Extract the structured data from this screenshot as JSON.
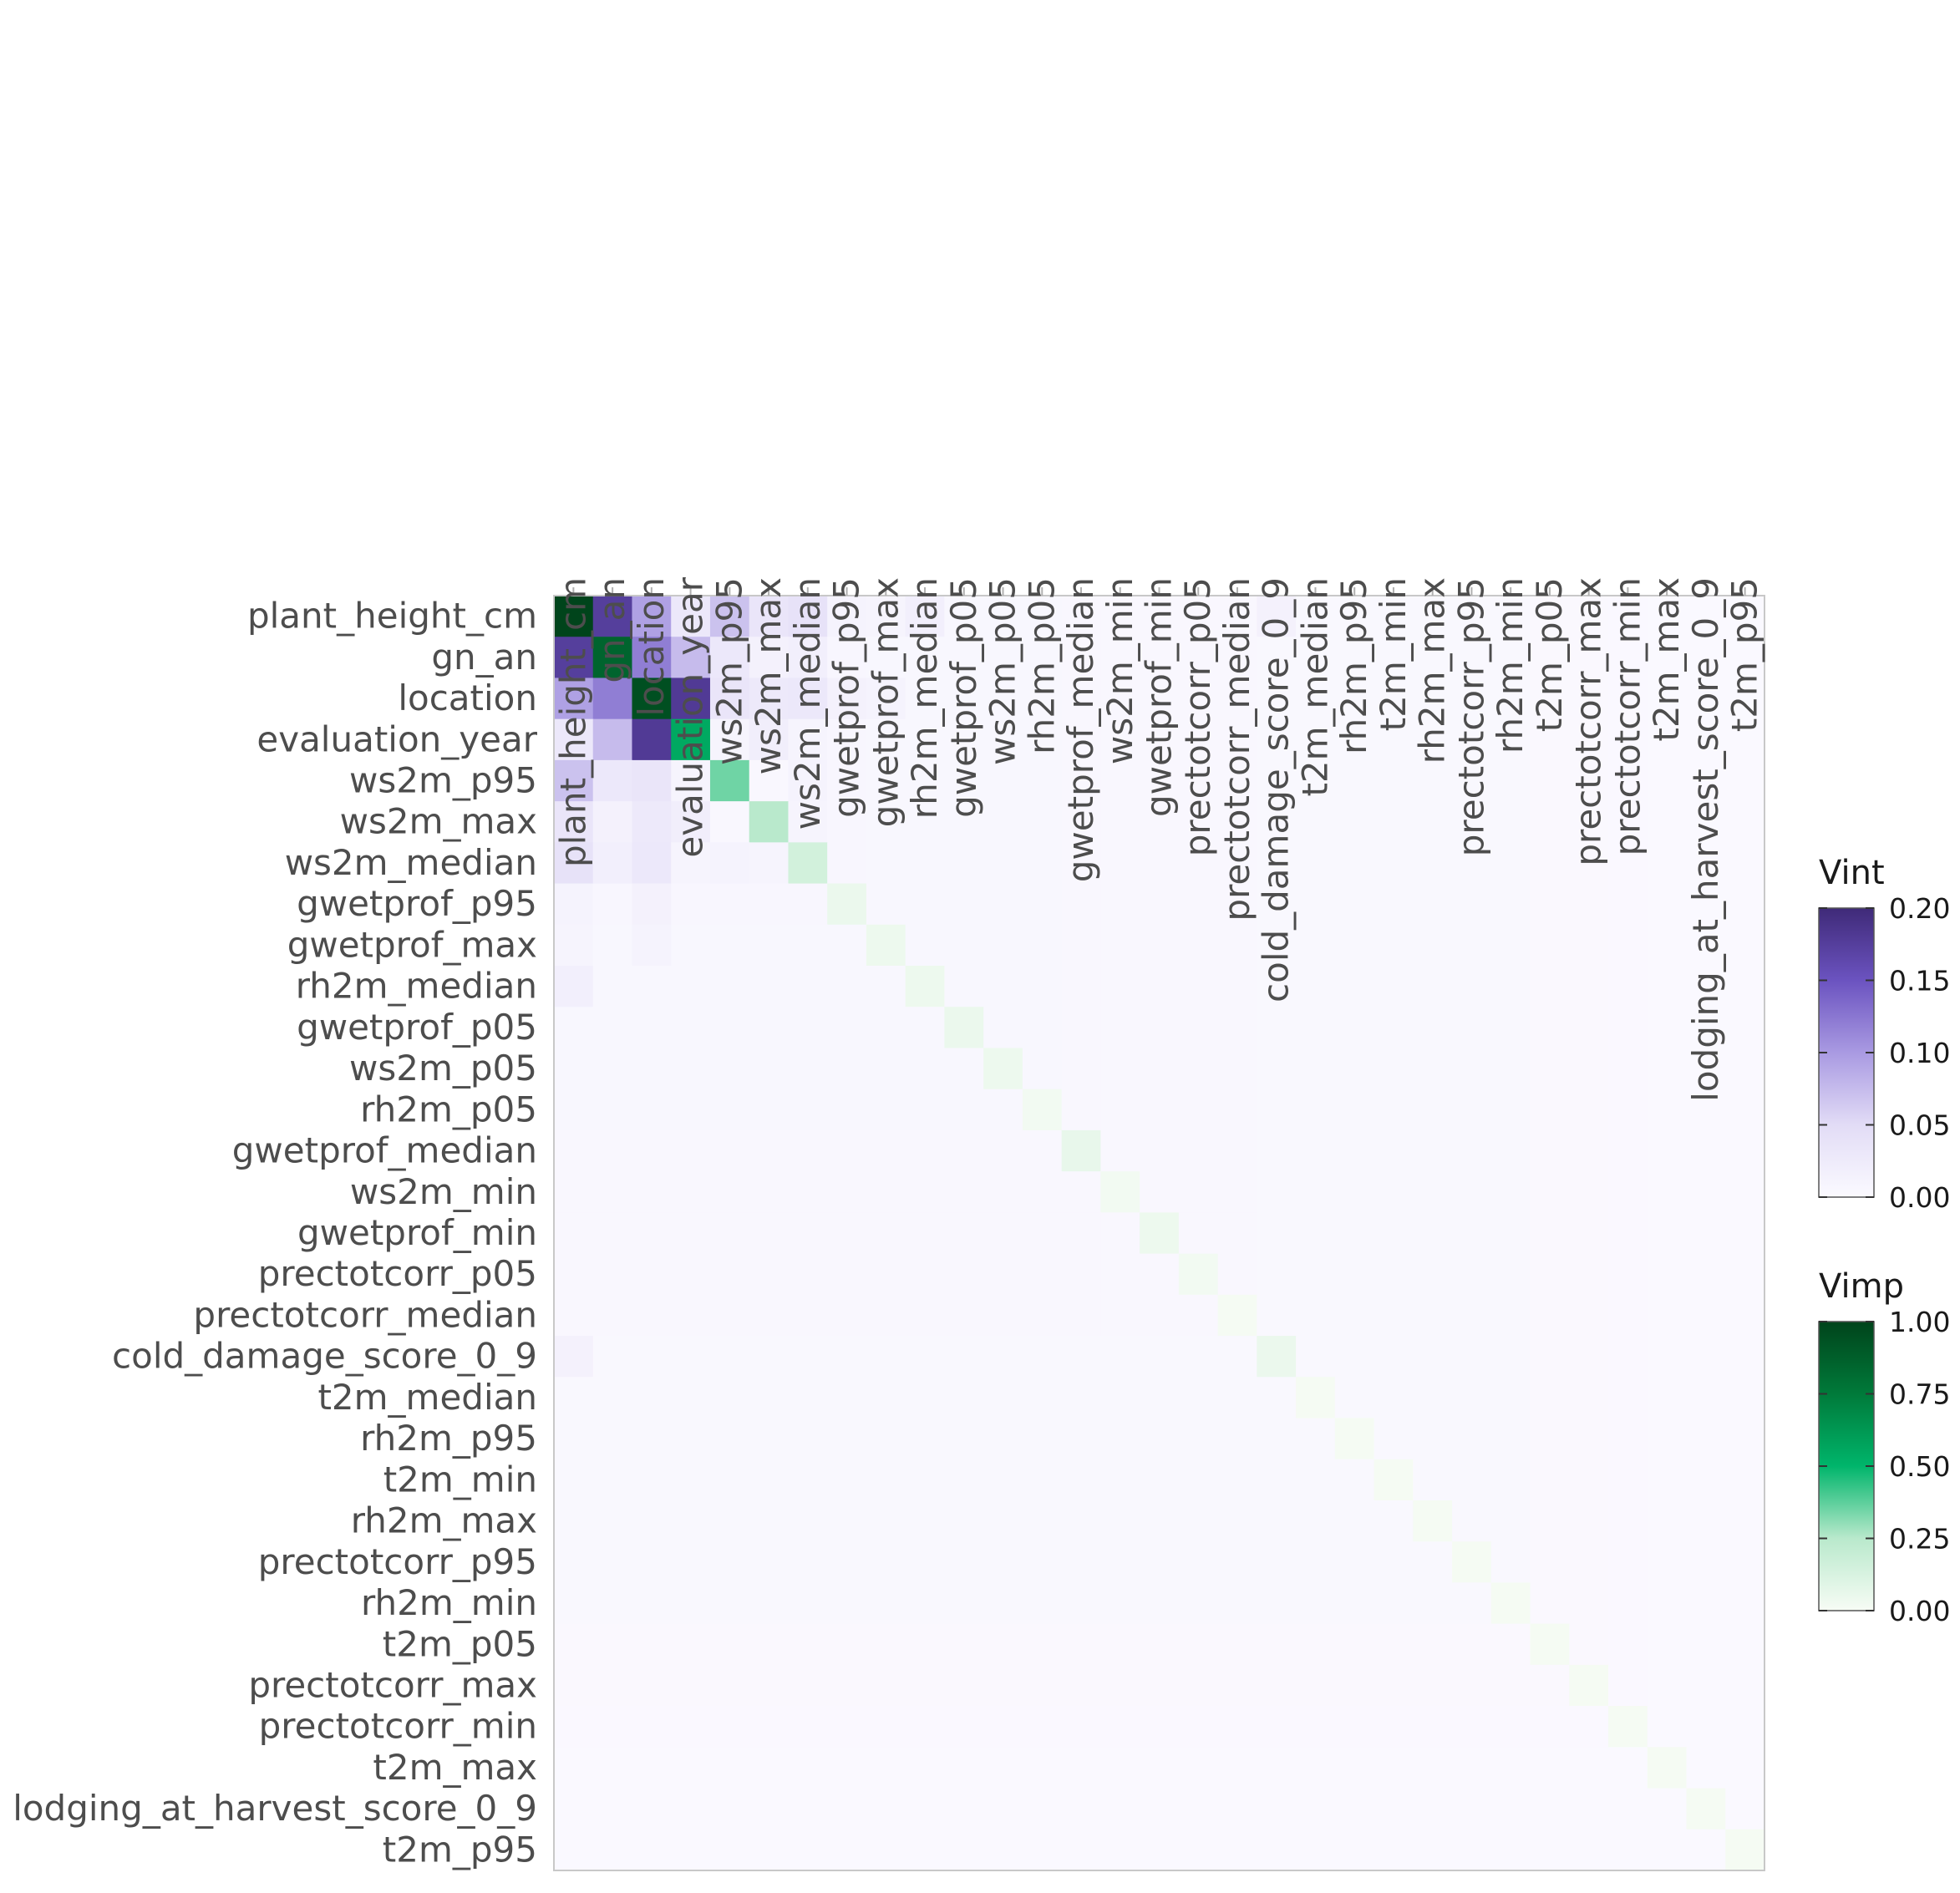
{
  "chart_data": {
    "type": "heatmap",
    "variables": [
      "plant_height_cm",
      "gn_an",
      "location",
      "evaluation_year",
      "ws2m_p95",
      "ws2m_max",
      "ws2m_median",
      "gwetprof_p95",
      "gwetprof_max",
      "rh2m_median",
      "gwetprof_p05",
      "ws2m_p05",
      "rh2m_p05",
      "gwetprof_median",
      "ws2m_min",
      "gwetprof_min",
      "prectotcorr_p05",
      "prectotcorr_median",
      "cold_damage_score_0_9",
      "t2m_median",
      "rh2m_p95",
      "t2m_min",
      "rh2m_max",
      "prectotcorr_p95",
      "rh2m_min",
      "t2m_p05",
      "prectotcorr_max",
      "prectotcorr_min",
      "t2m_max",
      "lodging_at_harvest_score_0_9",
      "t2m_p95"
    ],
    "vimp": [
      1.0,
      0.85,
      0.95,
      0.55,
      0.35,
      0.25,
      0.15,
      0.05,
      0.04,
      0.04,
      0.05,
      0.04,
      0.02,
      0.06,
      0.02,
      0.04,
      0.02,
      0.01,
      0.05,
      0.01,
      0.01,
      0.01,
      0.01,
      0.01,
      0.01,
      0.01,
      0.01,
      0.01,
      0.01,
      0.01,
      0.01
    ],
    "vint_major": [
      {
        "row": "plant_height_cm",
        "col": "gn_an",
        "value": 0.175
      },
      {
        "row": "plant_height_cm",
        "col": "location",
        "value": 0.095
      },
      {
        "row": "plant_height_cm",
        "col": "evaluation_year",
        "value": 0.03
      },
      {
        "row": "plant_height_cm",
        "col": "ws2m_p95",
        "value": 0.07
      },
      {
        "row": "plant_height_cm",
        "col": "ws2m_max",
        "value": 0.035
      },
      {
        "row": "plant_height_cm",
        "col": "ws2m_median",
        "value": 0.04
      },
      {
        "row": "plant_height_cm",
        "col": "gwetprof_p95",
        "value": 0.012
      },
      {
        "row": "plant_height_cm",
        "col": "gwetprof_max",
        "value": 0.01
      },
      {
        "row": "plant_height_cm",
        "col": "rh2m_median",
        "value": 0.018
      },
      {
        "row": "plant_height_cm",
        "col": "cold_damage_score_0_9",
        "value": 0.015
      },
      {
        "row": "gn_an",
        "col": "location",
        "value": 0.12
      },
      {
        "row": "gn_an",
        "col": "evaluation_year",
        "value": 0.075
      },
      {
        "row": "gn_an",
        "col": "ws2m_p95",
        "value": 0.03
      },
      {
        "row": "gn_an",
        "col": "ws2m_max",
        "value": 0.015
      },
      {
        "row": "gn_an",
        "col": "ws2m_median",
        "value": 0.018
      },
      {
        "row": "location",
        "col": "evaluation_year",
        "value": 0.18
      },
      {
        "row": "location",
        "col": "ws2m_p95",
        "value": 0.035
      },
      {
        "row": "location",
        "col": "ws2m_max",
        "value": 0.028
      },
      {
        "row": "location",
        "col": "ws2m_median",
        "value": 0.03
      },
      {
        "row": "location",
        "col": "gwetprof_p95",
        "value": 0.015
      },
      {
        "row": "location",
        "col": "gwetprof_max",
        "value": 0.012
      },
      {
        "row": "evaluation_year",
        "col": "ws2m_p95",
        "value": 0.01
      },
      {
        "row": "evaluation_year",
        "col": "ws2m_max",
        "value": 0.02
      },
      {
        "row": "evaluation_year",
        "col": "ws2m_median",
        "value": 0.01
      },
      {
        "row": "ws2m_p95",
        "col": "ws2m_max",
        "value": 0.005
      },
      {
        "row": "ws2m_p95",
        "col": "ws2m_median",
        "value": 0.012
      },
      {
        "row": "ws2m_max",
        "col": "ws2m_median",
        "value": 0.01
      }
    ],
    "vint_background": 0.005,
    "legends": [
      {
        "title": "Vint",
        "min": 0.0,
        "max": 0.2,
        "ticks": [
          "0.20",
          "0.15",
          "0.10",
          "0.05",
          "0.00"
        ],
        "low_color": "#f7f4fb",
        "high_color": "#3f2a78"
      },
      {
        "title": "Vimp",
        "min": 0.0,
        "max": 1.0,
        "ticks": [
          "1.00",
          "0.75",
          "0.50",
          "0.25",
          "0.00"
        ],
        "low_color": "#f7fcf5",
        "high_color": "#00441b"
      }
    ]
  }
}
